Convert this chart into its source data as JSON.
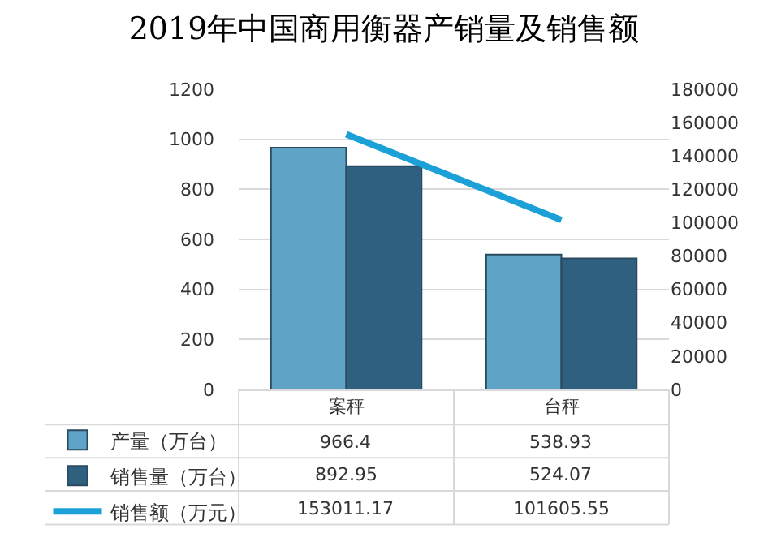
{
  "chart_data": {
    "type": "bar",
    "title": "2019年中国商用衡器产销量及销售额",
    "categories": [
      "案秤",
      "台秤"
    ],
    "series": [
      {
        "name": "产量（万台）",
        "color": "#5fa3c6",
        "values": [
          966.4,
          538.93
        ]
      },
      {
        "name": "销售量（万台）",
        "color": "#2f6080",
        "values": [
          892.95,
          524.07
        ]
      },
      {
        "name": "销售额（万元）",
        "type": "line",
        "axis": "y2",
        "color": "#1ba1d8",
        "values": [
          153011.17,
          101605.55
        ]
      }
    ],
    "ylim": [
      0,
      1200
    ],
    "yticks": [
      0,
      200,
      400,
      600,
      800,
      1000,
      1200
    ],
    "y2lim": [
      0,
      180000
    ],
    "y2ticks": [
      0,
      20000,
      40000,
      60000,
      80000,
      100000,
      120000,
      140000,
      160000,
      180000
    ],
    "grid": "y",
    "legend": "bottom left",
    "data_labels": true,
    "marker": "none"
  }
}
